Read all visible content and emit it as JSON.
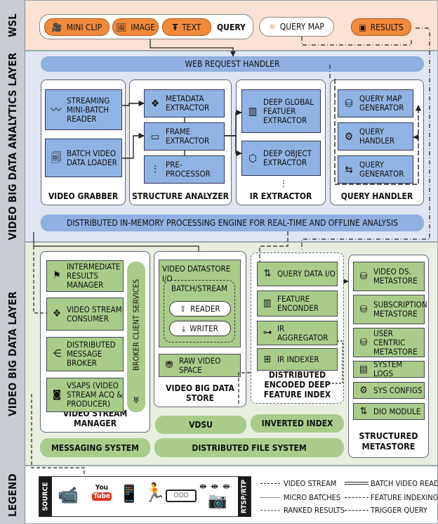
{
  "bands": {
    "wsl": "WSL",
    "analytics": "VIDEO BIG DATA ANALYTICS LAYER",
    "bigdata": "VIDEO BIG DATA LAYER",
    "legend": "LEGEND"
  },
  "wsl": {
    "query_items": [
      "MINI CLIP",
      "IMAGE",
      "TEXT"
    ],
    "query_label": "QUERY",
    "query_map": "QUERY MAP",
    "results": "RESULTS"
  },
  "analytics": {
    "web_request_handler": "WEB REQUEST HANDLER",
    "video_grabber": {
      "title": "VIDEO GRABBER",
      "modules": [
        "STREAMING MINI-BATCH READER",
        "BATCH VIDEO DATA LOADER"
      ]
    },
    "structure_analyzer": {
      "title": "STRUCTURE ANALYZER",
      "modules": [
        "METADATA EXTRACTOR",
        "FRAME EXTRACTOR",
        "PRE-PROCESSOR"
      ]
    },
    "ir_extractor": {
      "title": "IR EXTRACTOR",
      "modules": [
        "DEEP GLOBAL FEATUER EXTRACTOR",
        "DEEP OBJECT EXTRACTOR"
      ],
      "ellipsis": "⋮"
    },
    "query_handler": {
      "title": "QUERY HANDLER",
      "modules": [
        "QUERY MAP GENERATOR",
        "QUERY HANDLER",
        "QUERY GENERATOR"
      ]
    },
    "engine": "DISTRIBUTED IN-MEMORY PROCESSING ENGINE FOR REAL-TIME AND OFFLINE ANALYSIS"
  },
  "bigdata": {
    "vsm": {
      "title": "VIDEO STREAM MANAGER",
      "modules": [
        "INTERMEDIATE RESULTS MANAGER",
        "VIDEO STREAM CONSUMER",
        "DISTRIBUTED MESSAGE BROKER",
        "VSAPS (VIDEO STREAM ACQ & PRODUCER)"
      ],
      "broker_client": "BROKER CLIENT SERVICES"
    },
    "vbds": {
      "title": "VIDEO BIG DATA STORE",
      "io_title": "VIDEO DATASTORE I/O",
      "batch_stream": "BATCH/STREAM",
      "reader": "READER",
      "writer": "WRITER",
      "raw": "RAW VIDEO SPACE"
    },
    "defi": {
      "title": "DISTRIBUTED ENCODED DEEP FEATURE INDEX",
      "modules": [
        "QUERY DATA I/O",
        "FEATURE ENCONDER",
        "IR AGGREGATOR",
        "IR INDEXER"
      ]
    },
    "metastore": {
      "title": "STRUCTURED METASTORE",
      "items": [
        "VIDEO DS. METASTORE",
        "SUBSCRIPTION METASTORE",
        "USER CENTRIC METASTORE",
        "SYSTEM LOGS",
        "SYS CONFIGS",
        "DIO MODULE"
      ]
    },
    "vdsu": "VDSU",
    "inverted_index": "INVERTED INDEX",
    "messaging": "MESSAGING SYSTEM",
    "dfs": "DISTRIBUTED FILE SYSTEM"
  },
  "legend": {
    "source": "SOURCE",
    "protocol": "RTSP/RTP",
    "items": [
      "VIDEO STREAM",
      "MICRO BATCHES",
      "RANKED RESULTS",
      "BATCH VIDEO READ",
      "FEATURE INDEXING",
      "TRIGGER QUERY"
    ]
  },
  "colors": {
    "wsl_bg": "#fbe2d4",
    "analytics_bg": "#dfe5f1",
    "bigdata_bg": "#e9efe0",
    "orange": "#f28a3c",
    "blue_module": "#8fb4e3",
    "green_module": "#a9cc8a"
  }
}
